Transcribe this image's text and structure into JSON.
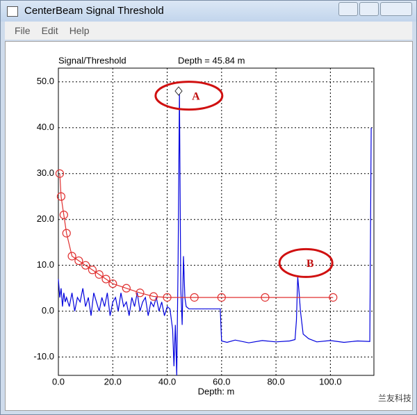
{
  "window": {
    "title": "CenterBeam Signal Threshold",
    "menu": [
      "File",
      "Edit",
      "Help"
    ]
  },
  "chart_data": {
    "type": "line",
    "title": "Signal/Threshold",
    "subtitle": "Depth = 45.84 m",
    "x_label": "Depth: m",
    "xlim": [
      0,
      116
    ],
    "ylim": [
      -14,
      53
    ],
    "xticks": [
      {
        "value": 0,
        "label": "0.0"
      },
      {
        "value": 20,
        "label": "20.0"
      },
      {
        "value": 40,
        "label": "40.0"
      },
      {
        "value": 60,
        "label": "60.0"
      },
      {
        "value": 80,
        "label": "80.0"
      },
      {
        "value": 100,
        "label": "100.0"
      }
    ],
    "yticks": [
      {
        "value": -10,
        "label": "-10.0"
      },
      {
        "value": 0,
        "label": "0.0"
      },
      {
        "value": 10,
        "label": "10.0"
      },
      {
        "value": 20,
        "label": "20.0"
      },
      {
        "value": 30,
        "label": "30.0"
      },
      {
        "value": 40,
        "label": "40.0"
      },
      {
        "value": 50,
        "label": "50.0"
      }
    ],
    "grid": true,
    "series": [
      {
        "color": "#0000dd",
        "marker": "none",
        "x": [
          0,
          0.5,
          1,
          1.5,
          2,
          2.5,
          3,
          4,
          5,
          6,
          7,
          8,
          9,
          10,
          11,
          12,
          13,
          14,
          15,
          16,
          17,
          18,
          19,
          20,
          21,
          22,
          23,
          24,
          25,
          26,
          27,
          28,
          29,
          30,
          31,
          32,
          33,
          34,
          35,
          36,
          37,
          38,
          39,
          40,
          41,
          42,
          42.5,
          43,
          43.5,
          44,
          44.5,
          45,
          45.5,
          46,
          46.5,
          47,
          48,
          55,
          59.5,
          60,
          62,
          65,
          70,
          75,
          80,
          85,
          87,
          87.5,
          88,
          88.5,
          89,
          90,
          92,
          95,
          100,
          105,
          110,
          114.5,
          115
        ],
        "values": [
          7,
          3,
          5,
          1,
          4,
          2,
          3,
          1,
          4,
          0,
          3,
          2,
          5,
          1,
          3,
          -1,
          4,
          2,
          0,
          3,
          1,
          4,
          -1,
          2,
          3,
          0,
          4,
          1,
          2,
          -1,
          3,
          1,
          4,
          0,
          2,
          3,
          -1,
          2,
          1,
          3,
          0,
          2,
          -1,
          1,
          0.5,
          -4,
          -12,
          -3,
          -14,
          10,
          48,
          5,
          -3,
          12,
          3,
          1,
          0.5,
          0.5,
          0.5,
          -6.5,
          -6.8,
          -6.3,
          -6.9,
          -6.4,
          -6.7,
          -6.5,
          -6.2,
          -2,
          7.5,
          4,
          0,
          -5,
          -6,
          -6.7,
          -6.4,
          -6.8,
          -6.5,
          -6.6,
          40
        ]
      },
      {
        "color": "#e03030",
        "marker": "circle",
        "x": [
          0.5,
          1,
          2,
          3,
          5,
          7.5,
          10,
          12.5,
          15,
          17.5,
          20,
          25,
          30,
          35,
          40,
          50,
          60,
          76,
          101
        ],
        "values": [
          30,
          25,
          21,
          17,
          12,
          11,
          10,
          9,
          8,
          7,
          6,
          5,
          4,
          3.2,
          3,
          3,
          3,
          3,
          3
        ]
      }
    ],
    "current_marker": {
      "x": 44.2,
      "y": 48
    },
    "annotations": [
      {
        "text": "A",
        "x": 48,
        "y": 47
      },
      {
        "text": "B",
        "x": 91,
        "y": 10.5
      }
    ],
    "watermark": "兰友科技"
  }
}
